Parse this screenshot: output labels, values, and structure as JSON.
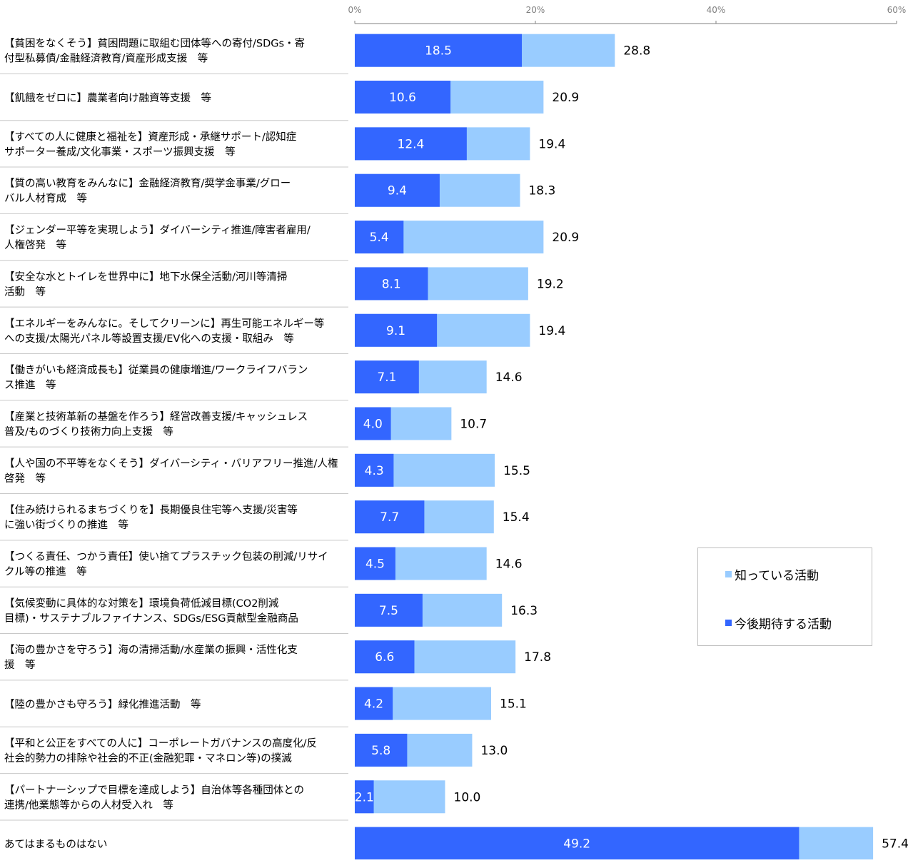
{
  "chart_data": {
    "type": "bar",
    "orientation": "horizontal",
    "x_axis": {
      "min": 0,
      "max": 60,
      "ticks": [
        "0%",
        "20%",
        "40%",
        "60%"
      ],
      "position": "top"
    },
    "categories": [
      [
        "【貧困をなくそう】貧困問題に取組む団体等への寄付/SDGs・寄",
        "付型私募債/金融経済教育/資産形成支援　等"
      ],
      [
        "【飢餓をゼロに】農業者向け融資等支援　等"
      ],
      [
        "【すべての人に健康と福祉を】資産形成・承継サポート/認知症",
        "サポーター養成/文化事業・スポーツ振興支援　等"
      ],
      [
        "【質の高い教育をみんなに】金融経済教育/奨学金事業/グロー",
        "バル人材育成　等"
      ],
      [
        "【ジェンダー平等を実現しよう】ダイバーシティ推進/障害者雇用/",
        "人権啓発　等"
      ],
      [
        "【安全な水とトイレを世界中に】地下水保全活動/河川等清掃",
        "活動　等"
      ],
      [
        "【エネルギーをみんなに。そしてクリーンに】再生可能エネルギー等",
        "への支援/太陽光パネル等設置支援/EV化への支援・取組み　等"
      ],
      [
        "【働きがいも経済成長も】従業員の健康増進/ワークライフバラン",
        "ス推進　等"
      ],
      [
        "【産業と技術革新の基盤を作ろう】経営改善支援/キャッシュレス",
        "普及/ものづくり技術力向上支援　等"
      ],
      [
        "【人や国の不平等をなくそう】ダイバーシティ・バリアフリー推進/人権",
        "啓発　等"
      ],
      [
        "【住み続けられるまちづくりを】長期優良住宅等へ支援/災害等",
        "に強い街づくりの推進　等"
      ],
      [
        "【つくる責任、つかう責任】使い捨てプラスチック包装の削減/リサイ",
        "クル等の推進　等"
      ],
      [
        "【気候変動に具体的な対策を】環境負荷低減目標(CO2削減",
        "目標)・サステナブルファイナンス、SDGs/ESG貢献型金融商品"
      ],
      [
        "【海の豊かさを守ろう】海の清掃活動/水産業の振興・活性化支",
        "援　等"
      ],
      [
        "【陸の豊かさも守ろう】緑化推進活動　等"
      ],
      [
        "【平和と公正をすべての人に】コーポレートガバナンスの高度化/反",
        "社会的勢力の排除や社会的不正(金融犯罪・マネロン等)の撲滅"
      ],
      [
        "【パートナーシップで目標を達成しよう】自治体等各種団体との",
        "連携/他業態等からの人材受入れ　等"
      ],
      [
        "あてはまるものはない"
      ]
    ],
    "series": [
      {
        "name": "知っている活動",
        "color": "#99ccff",
        "values": [
          28.8,
          20.9,
          19.4,
          18.3,
          20.9,
          19.2,
          19.4,
          14.6,
          10.7,
          15.5,
          15.4,
          14.6,
          16.3,
          17.8,
          15.1,
          13.0,
          10.0,
          57.4
        ],
        "labels": [
          "28.8",
          "20.9",
          "19.4",
          "18.3",
          "20.9",
          "19.2",
          "19.4",
          "14.6",
          "10.7",
          "15.5",
          "15.4",
          "14.6",
          "16.3",
          "17.8",
          "15.1",
          "13.0",
          "10.0",
          "57.4"
        ]
      },
      {
        "name": "今後期待する活動",
        "color": "#3366ff",
        "values": [
          18.5,
          10.6,
          12.4,
          9.4,
          5.4,
          8.1,
          9.1,
          7.1,
          4.0,
          4.3,
          7.7,
          4.5,
          7.5,
          6.6,
          4.2,
          5.8,
          2.1,
          49.2
        ],
        "labels": [
          "18.5",
          "10.6",
          "12.4",
          "9.4",
          "5.4",
          "8.1",
          "9.1",
          "7.1",
          "4.0",
          "4.3",
          "7.7",
          "4.5",
          "7.5",
          "6.6",
          "4.2",
          "5.8",
          "2.1",
          "49.2"
        ]
      }
    ],
    "legend": {
      "placement": "right-lower"
    },
    "grid": false,
    "separators": true
  }
}
